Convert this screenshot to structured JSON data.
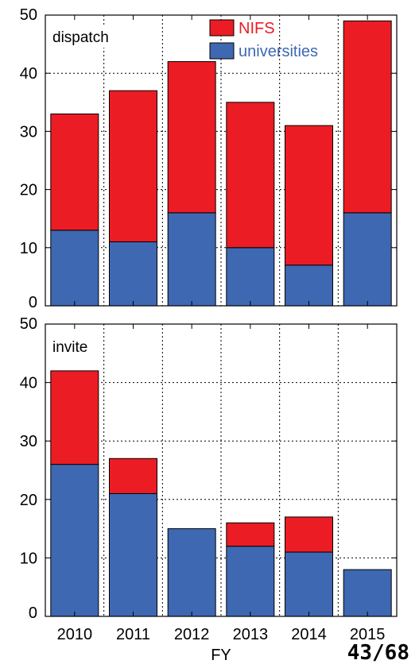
{
  "page_number": "43/68",
  "chart_data": [
    {
      "type": "bar",
      "stacked": true,
      "panel_label": "dispatch",
      "categories": [
        "2010",
        "2011",
        "2012",
        "2013",
        "2014",
        "2015"
      ],
      "series": [
        {
          "name": "universities",
          "color": "#3e68b2",
          "values": [
            13,
            11,
            16,
            10,
            7,
            16
          ]
        },
        {
          "name": "NIFS",
          "color": "#ec1c24",
          "values": [
            20,
            26,
            26,
            25,
            24,
            33
          ]
        }
      ],
      "ylim": [
        0,
        50
      ],
      "yticks": [
        0,
        10,
        20,
        30,
        40,
        50
      ],
      "grid": true,
      "legend": "top-center",
      "xlabel": ""
    },
    {
      "type": "bar",
      "stacked": true,
      "panel_label": "invite",
      "categories": [
        "2010",
        "2011",
        "2012",
        "2013",
        "2014",
        "2015"
      ],
      "series": [
        {
          "name": "universities",
          "color": "#3e68b2",
          "values": [
            26,
            21,
            15,
            12,
            11,
            8
          ]
        },
        {
          "name": "NIFS",
          "color": "#ec1c24",
          "values": [
            16,
            6,
            0,
            4,
            6,
            0
          ]
        }
      ],
      "ylim": [
        0,
        50
      ],
      "yticks": [
        0,
        10,
        20,
        30,
        40,
        50
      ],
      "grid": true,
      "xlabel": "FY"
    }
  ]
}
